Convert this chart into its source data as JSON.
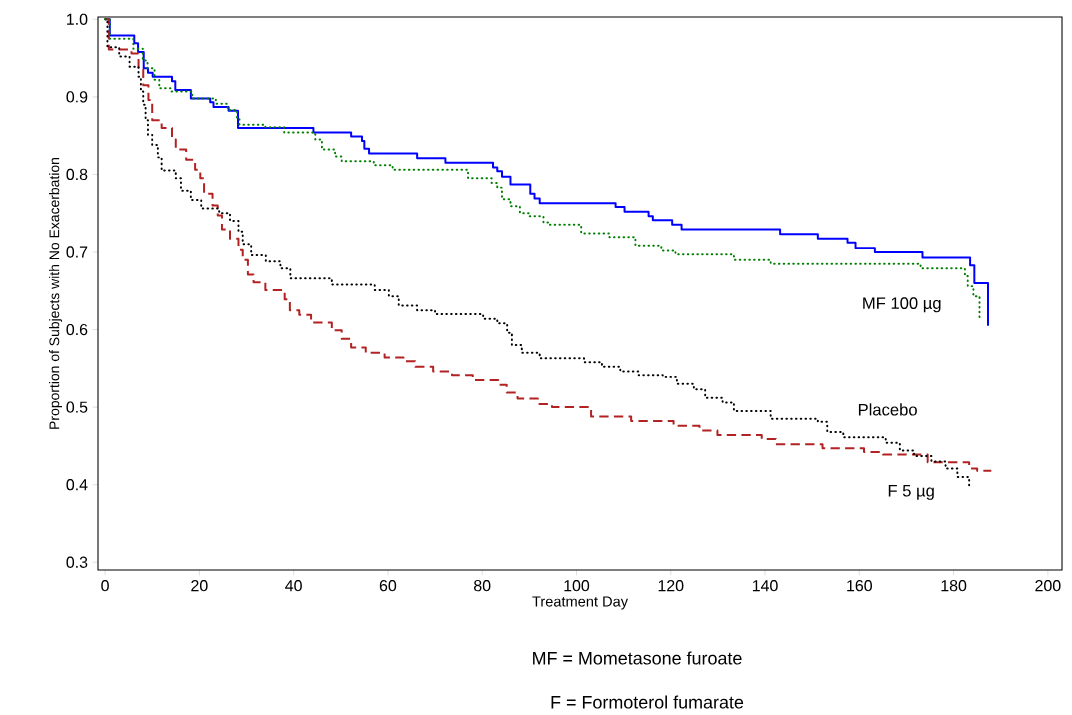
{
  "chart_data": {
    "type": "step",
    "xlabel": "Treatment Day",
    "ylabel": "Proportion of Subjects with No Exacerbation",
    "xlim": [
      -1.5,
      203
    ],
    "ylim": [
      0.29,
      1.003
    ],
    "xticks": [
      0,
      20,
      40,
      60,
      80,
      100,
      120,
      140,
      160,
      180,
      200
    ],
    "yticks": [
      {
        "value": 0.3,
        "label": "0.3"
      },
      {
        "value": 0.4,
        "label": "0.4"
      },
      {
        "value": 0.5,
        "label": "0.5"
      },
      {
        "value": 0.6,
        "label": "0.6"
      },
      {
        "value": 0.7,
        "label": "0.7"
      },
      {
        "value": 0.8,
        "label": "0.8"
      },
      {
        "value": 0.9,
        "label": "0.9"
      },
      {
        "value": 1.0,
        "label": "1.0"
      }
    ],
    "series": [
      {
        "color": "#0000ff",
        "line_style": "solid",
        "x": [
          0,
          1,
          6.2,
          7,
          8.2,
          9.1,
          10.1,
          14.2,
          14.9,
          18.2,
          22.3,
          23,
          26.2,
          28.2,
          44.2,
          52.2,
          54.5,
          55,
          56,
          66.2,
          72.2,
          82.3,
          83.2,
          84.2,
          86,
          90.2,
          91.1,
          92.2,
          108.3,
          110.2,
          115.3,
          116.2,
          120.3,
          122.3,
          143.2,
          151.2,
          157.5,
          159.2,
          163.3,
          173.4,
          183.5,
          184.4,
          187.3
        ],
        "values": [
          1.0,
          0.979,
          0.969,
          0.958,
          0.937,
          0.931,
          0.926,
          0.92,
          0.909,
          0.898,
          0.893,
          0.887,
          0.882,
          0.86,
          0.854,
          0.849,
          0.843,
          0.833,
          0.827,
          0.821,
          0.815,
          0.809,
          0.804,
          0.797,
          0.787,
          0.775,
          0.769,
          0.763,
          0.758,
          0.752,
          0.746,
          0.741,
          0.735,
          0.729,
          0.723,
          0.717,
          0.712,
          0.705,
          0.7,
          0.693,
          0.683,
          0.66,
          0.605
        ]
      },
      {
        "name": "MF 100 µg",
        "color": "#008000",
        "line_style": "dotted",
        "x": [
          0,
          1,
          6,
          8,
          9,
          10.5,
          11.5,
          14,
          18.5,
          23.5,
          26,
          28,
          28.5,
          34,
          38,
          44.6,
          46,
          48.8,
          50.2,
          57,
          61,
          77,
          82,
          83.2,
          84.2,
          86,
          88,
          90,
          93,
          94,
          101,
          107,
          112.5,
          118,
          121,
          133.4,
          141.2,
          173,
          182.4,
          183,
          184.2,
          185.5
        ],
        "values": [
          1.0,
          0.975,
          0.962,
          0.947,
          0.937,
          0.922,
          0.911,
          0.907,
          0.898,
          0.891,
          0.883,
          0.873,
          0.864,
          0.861,
          0.854,
          0.845,
          0.832,
          0.823,
          0.817,
          0.812,
          0.806,
          0.795,
          0.789,
          0.783,
          0.768,
          0.759,
          0.75,
          0.746,
          0.738,
          0.735,
          0.724,
          0.719,
          0.708,
          0.702,
          0.697,
          0.69,
          0.685,
          0.679,
          0.669,
          0.656,
          0.643,
          0.616
        ]
      },
      {
        "name": "Placebo",
        "color": "#000000",
        "line_style": "dotted",
        "x": [
          0,
          0.5,
          3,
          5.2,
          7.1,
          7.6,
          8.1,
          8.6,
          9.1,
          10,
          11.2,
          12,
          15,
          16.1,
          18.2,
          20.4,
          24.2,
          26.5,
          28.3,
          29.2,
          31,
          34.1,
          37.2,
          39.3,
          48.1,
          57.2,
          60.2,
          62.3,
          66.2,
          70,
          80.2,
          83.2,
          85.3,
          86.3,
          88.4,
          92.2,
          101.6,
          105.4,
          109.3,
          113.2,
          118.3,
          121.3,
          124.9,
          127.3,
          131,
          133.4,
          141.2,
          151.2,
          153.2,
          156.6,
          165.6,
          168.6,
          171.6,
          175.3,
          178.3,
          180.8,
          183.3
        ],
        "values": [
          1.0,
          0.964,
          0.952,
          0.939,
          0.926,
          0.907,
          0.89,
          0.87,
          0.851,
          0.838,
          0.822,
          0.805,
          0.795,
          0.779,
          0.767,
          0.756,
          0.75,
          0.74,
          0.726,
          0.71,
          0.696,
          0.688,
          0.679,
          0.666,
          0.658,
          0.651,
          0.643,
          0.631,
          0.625,
          0.62,
          0.614,
          0.608,
          0.596,
          0.58,
          0.57,
          0.563,
          0.558,
          0.552,
          0.546,
          0.541,
          0.539,
          0.53,
          0.523,
          0.512,
          0.506,
          0.495,
          0.485,
          0.481,
          0.468,
          0.461,
          0.454,
          0.444,
          0.437,
          0.43,
          0.421,
          0.41,
          0.399
        ]
      },
      {
        "name": "F 5 µg",
        "color": "#b22222",
        "line_style": "dashed",
        "x": [
          0,
          0.8,
          5.6,
          7.1,
          8.1,
          9.2,
          10,
          12,
          14.2,
          15,
          17.2,
          19.1,
          20.2,
          21,
          22.8,
          23.9,
          24.8,
          26.5,
          28.3,
          29.2,
          30.3,
          31.5,
          34,
          38.1,
          39.2,
          41.2,
          43.7,
          48.1,
          50.2,
          52.2,
          55.3,
          59.3,
          63.3,
          65.8,
          69.6,
          73.6,
          78,
          83.4,
          85.2,
          87.5,
          91.8,
          94.8,
          103.1,
          111.6,
          120.6,
          126.1,
          129.9,
          139.3,
          142.3,
          152.2,
          161,
          165,
          174.5,
          183.3,
          185,
          188
        ],
        "values": [
          1.0,
          0.961,
          0.956,
          0.935,
          0.915,
          0.896,
          0.87,
          0.86,
          0.845,
          0.832,
          0.819,
          0.806,
          0.795,
          0.775,
          0.76,
          0.747,
          0.729,
          0.717,
          0.703,
          0.69,
          0.671,
          0.661,
          0.651,
          0.639,
          0.625,
          0.619,
          0.609,
          0.599,
          0.588,
          0.577,
          0.57,
          0.564,
          0.559,
          0.552,
          0.546,
          0.541,
          0.535,
          0.529,
          0.519,
          0.511,
          0.504,
          0.5,
          0.488,
          0.482,
          0.476,
          0.47,
          0.464,
          0.459,
          0.452,
          0.447,
          0.442,
          0.439,
          0.429,
          0.421,
          0.418,
          0.418
        ]
      }
    ],
    "annotations": [
      "MF = Mometasone furoate",
      "F = Formoterol fumarate"
    ]
  }
}
